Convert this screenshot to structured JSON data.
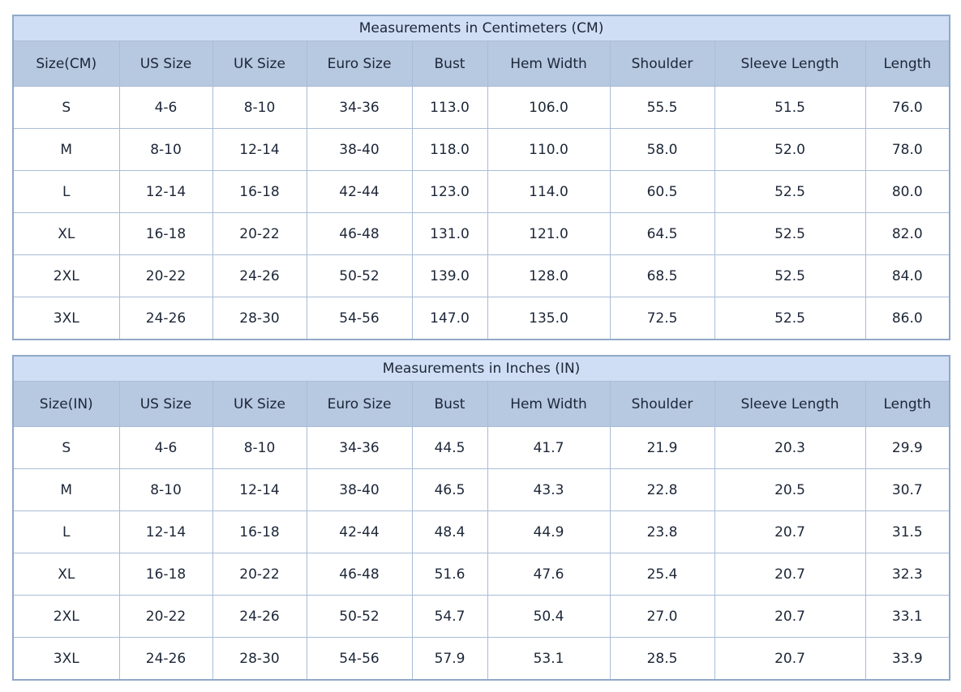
{
  "colors": {
    "title_row_bg": "#cfdef4",
    "header_row_bg": "#b7c8e1",
    "border": "#a9bcd6",
    "outer_border": "#90a9c9",
    "text": "#1c2637",
    "cell_bg": "#ffffff"
  },
  "chart_data": [
    {
      "type": "table",
      "title": "Measurements in Centimeters (CM)",
      "columns": [
        "Size(CM)",
        "US Size",
        "UK Size",
        "Euro Size",
        "Bust",
        "Hem Width",
        "Shoulder",
        "Sleeve Length",
        "Length"
      ],
      "rows": [
        [
          "S",
          "4-6",
          "8-10",
          "34-36",
          "113.0",
          "106.0",
          "55.5",
          "51.5",
          "76.0"
        ],
        [
          "M",
          "8-10",
          "12-14",
          "38-40",
          "118.0",
          "110.0",
          "58.0",
          "52.0",
          "78.0"
        ],
        [
          "L",
          "12-14",
          "16-18",
          "42-44",
          "123.0",
          "114.0",
          "60.5",
          "52.5",
          "80.0"
        ],
        [
          "XL",
          "16-18",
          "20-22",
          "46-48",
          "131.0",
          "121.0",
          "64.5",
          "52.5",
          "82.0"
        ],
        [
          "2XL",
          "20-22",
          "24-26",
          "50-52",
          "139.0",
          "128.0",
          "68.5",
          "52.5",
          "84.0"
        ],
        [
          "3XL",
          "24-26",
          "28-30",
          "54-56",
          "147.0",
          "135.0",
          "72.5",
          "52.5",
          "86.0"
        ]
      ]
    },
    {
      "type": "table",
      "title": "Measurements in Inches (IN)",
      "columns": [
        "Size(IN)",
        "US Size",
        "UK Size",
        "Euro Size",
        "Bust",
        "Hem Width",
        "Shoulder",
        "Sleeve Length",
        "Length"
      ],
      "rows": [
        [
          "S",
          "4-6",
          "8-10",
          "34-36",
          "44.5",
          "41.7",
          "21.9",
          "20.3",
          "29.9"
        ],
        [
          "M",
          "8-10",
          "12-14",
          "38-40",
          "46.5",
          "43.3",
          "22.8",
          "20.5",
          "30.7"
        ],
        [
          "L",
          "12-14",
          "16-18",
          "42-44",
          "48.4",
          "44.9",
          "23.8",
          "20.7",
          "31.5"
        ],
        [
          "XL",
          "16-18",
          "20-22",
          "46-48",
          "51.6",
          "47.6",
          "25.4",
          "20.7",
          "32.3"
        ],
        [
          "2XL",
          "20-22",
          "24-26",
          "50-52",
          "54.7",
          "50.4",
          "27.0",
          "20.7",
          "33.1"
        ],
        [
          "3XL",
          "24-26",
          "28-30",
          "54-56",
          "57.9",
          "53.1",
          "28.5",
          "20.7",
          "33.9"
        ]
      ]
    }
  ]
}
